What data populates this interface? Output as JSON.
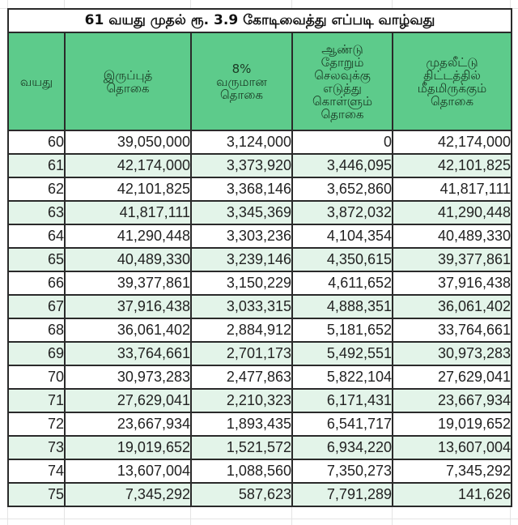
{
  "title": "61 வயது முதல் ரூ. 3.9 கோடிவைத்து எப்படி வாழ்வது",
  "colors": {
    "header_bg": "#5dcb8b",
    "row_alt_bg": "#e3f4e9",
    "border": "#2a2a2a"
  },
  "headers": [
    {
      "lines": [
        "வயது"
      ]
    },
    {
      "lines": [
        "இருப்புத்",
        "தொகை"
      ]
    },
    {
      "lines": [
        "8%",
        "வருமான",
        "தொகை"
      ]
    },
    {
      "lines": [
        "ஆண்டு",
        "தோறும்",
        "செலவுக்கு",
        "எடுத்து",
        "கொள்ளும்",
        "தொகை"
      ]
    },
    {
      "lines": [
        "முதலீட்டு",
        "திட்டத்தில்",
        "மீதமிருக்கும்",
        "தொகை"
      ]
    }
  ],
  "rows": [
    [
      "60",
      "39,050,000",
      "3,124,000",
      "0",
      "42,174,000"
    ],
    [
      "61",
      "42,174,000",
      "3,373,920",
      "3,446,095",
      "42,101,825"
    ],
    [
      "62",
      "42,101,825",
      "3,368,146",
      "3,652,860",
      "41,817,111"
    ],
    [
      "63",
      "41,817,111",
      "3,345,369",
      "3,872,032",
      "41,290,448"
    ],
    [
      "64",
      "41,290,448",
      "3,303,236",
      "4,104,354",
      "40,489,330"
    ],
    [
      "65",
      "40,489,330",
      "3,239,146",
      "4,350,615",
      "39,377,861"
    ],
    [
      "66",
      "39,377,861",
      "3,150,229",
      "4,611,652",
      "37,916,438"
    ],
    [
      "67",
      "37,916,438",
      "3,033,315",
      "4,888,351",
      "36,061,402"
    ],
    [
      "68",
      "36,061,402",
      "2,884,912",
      "5,181,652",
      "33,764,661"
    ],
    [
      "69",
      "33,764,661",
      "2,701,173",
      "5,492,551",
      "30,973,283"
    ],
    [
      "70",
      "30,973,283",
      "2,477,863",
      "5,822,104",
      "27,629,041"
    ],
    [
      "71",
      "27,629,041",
      "2,210,323",
      "6,171,431",
      "23,667,934"
    ],
    [
      "72",
      "23,667,934",
      "1,893,435",
      "6,541,717",
      "19,019,652"
    ],
    [
      "73",
      "19,019,652",
      "1,521,572",
      "6,934,220",
      "13,607,004"
    ],
    [
      "74",
      "13,607,004",
      "1,088,560",
      "7,350,273",
      "7,345,292"
    ],
    [
      "75",
      "7,345,292",
      "587,623",
      "7,791,289",
      "141,626"
    ]
  ]
}
